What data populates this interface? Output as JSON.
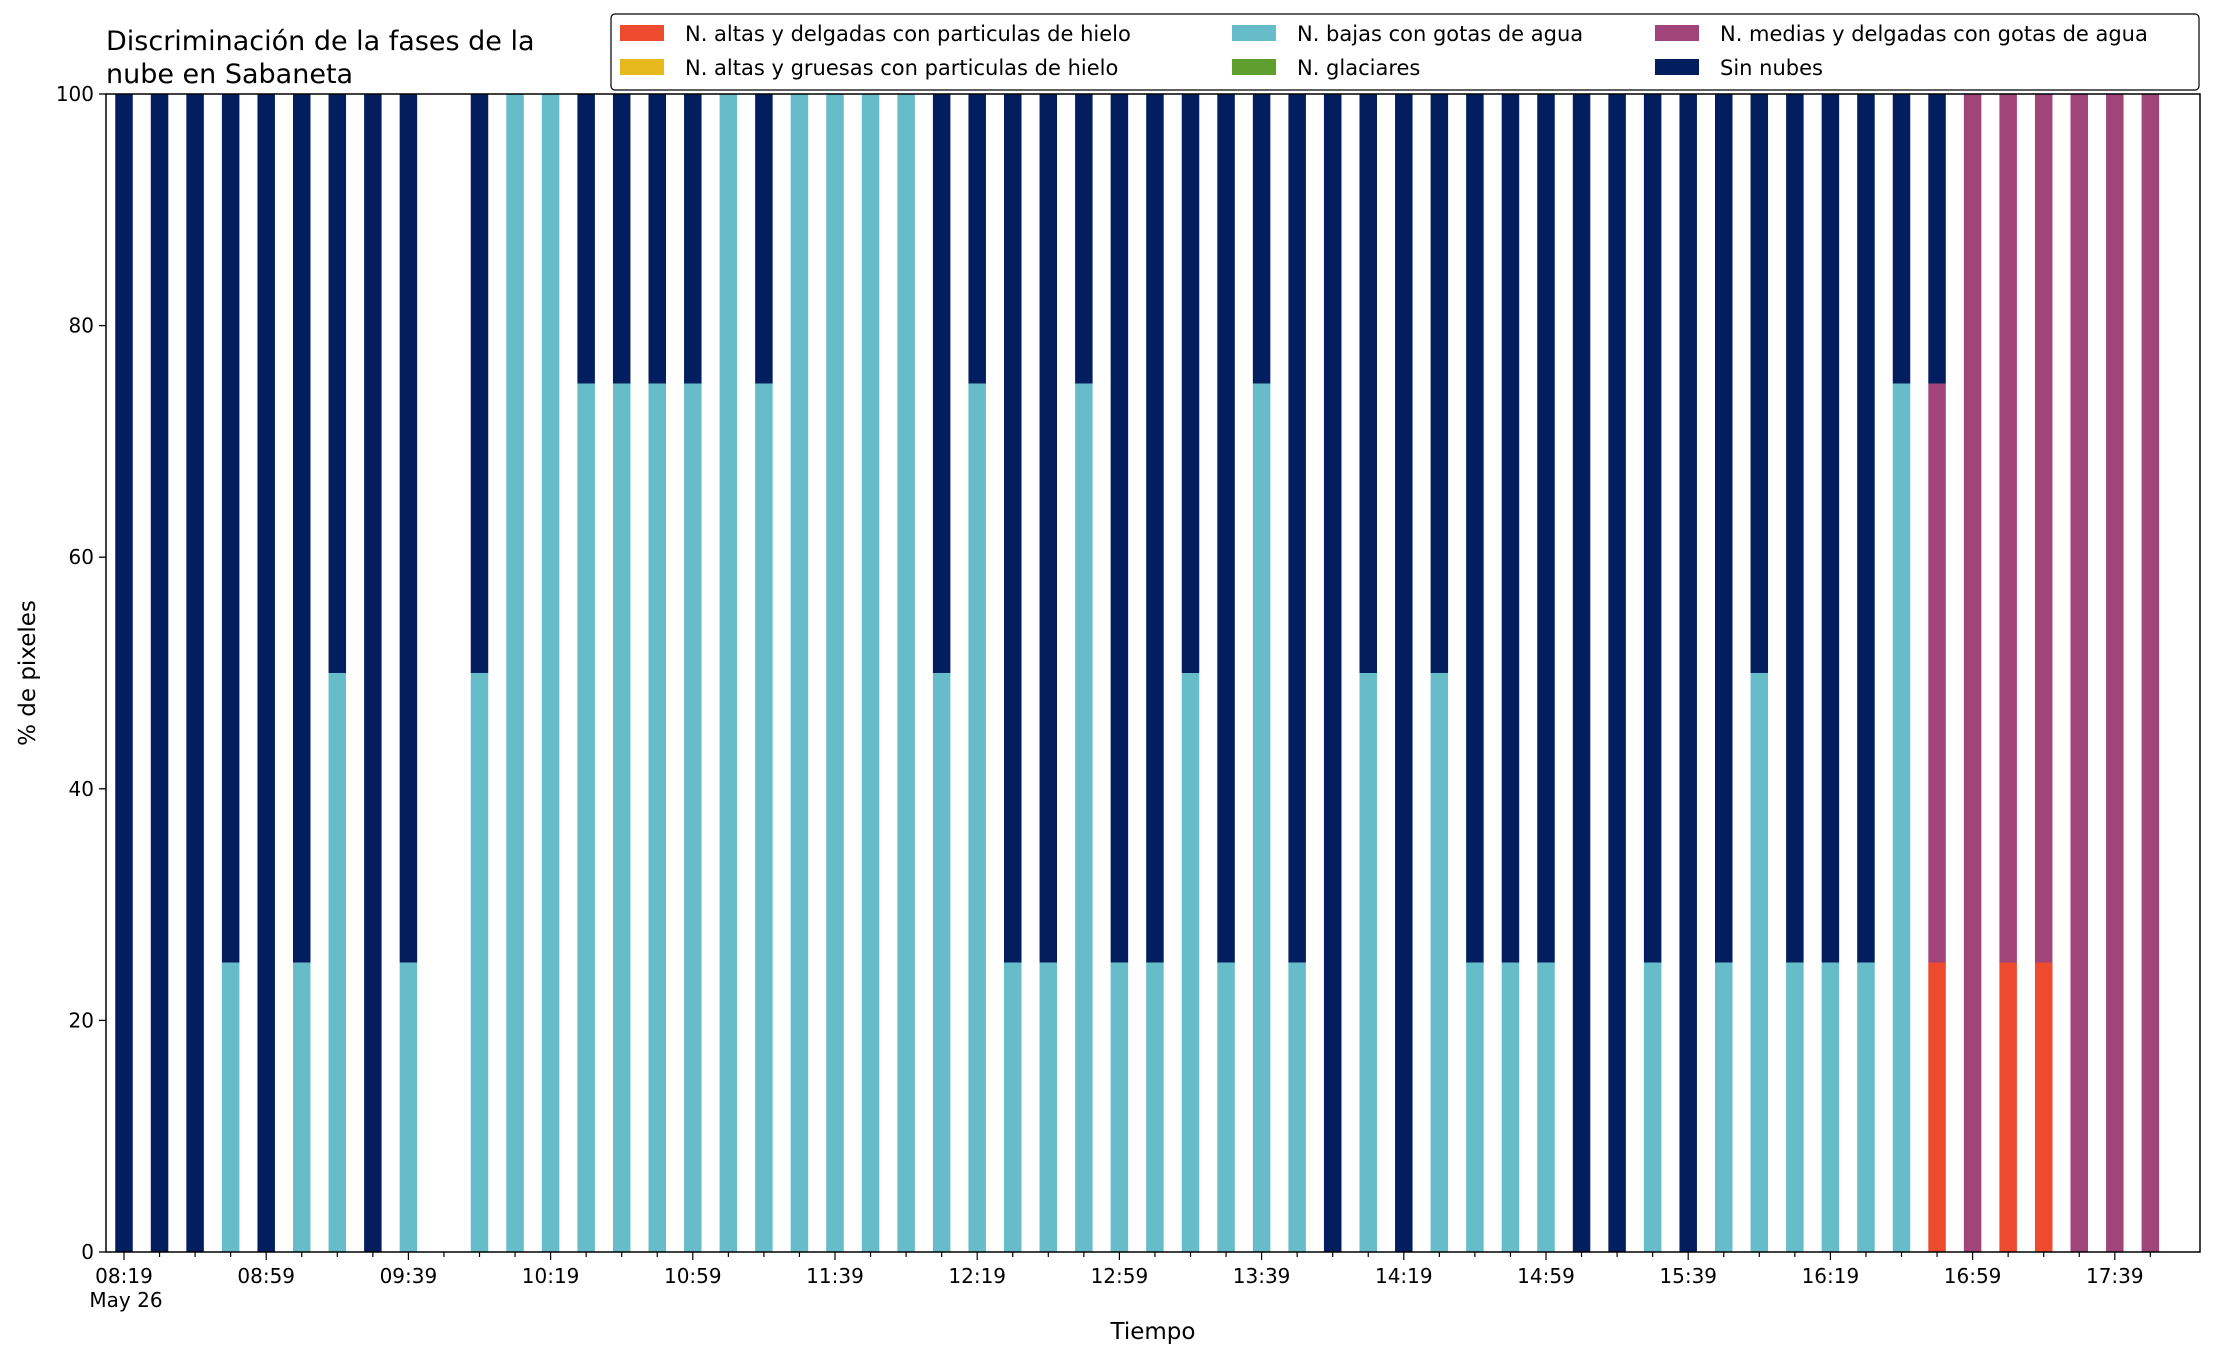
{
  "chart_data": {
    "type": "bar",
    "stacked": true,
    "title": "Discriminación de la fases de la\nnube en Sabaneta",
    "xlabel": "Tiempo",
    "ylabel": "% de pixeles",
    "ylim": [
      0,
      100
    ],
    "yticks": [
      0,
      20,
      40,
      60,
      80,
      100
    ],
    "grid": false,
    "legend_position": "top-right",
    "x_start": "08:19",
    "x_step_minutes": 10,
    "x_date_label": "May 26",
    "xtick_labels": [
      "08:19",
      "08:59",
      "09:39",
      "10:19",
      "10:59",
      "11:39",
      "12:19",
      "12:59",
      "13:39",
      "14:19",
      "14:59",
      "15:39",
      "16:19",
      "16:59",
      "17:39"
    ],
    "categories": [
      "08:19",
      "08:29",
      "08:39",
      "08:49",
      "08:59",
      "09:09",
      "09:19",
      "09:29",
      "09:39",
      "09:49",
      "09:59",
      "10:09",
      "10:19",
      "10:29",
      "10:39",
      "10:49",
      "10:59",
      "11:09",
      "11:19",
      "11:29",
      "11:39",
      "11:49",
      "11:59",
      "12:09",
      "12:19",
      "12:29",
      "12:39",
      "12:49",
      "12:59",
      "13:09",
      "13:19",
      "13:29",
      "13:39",
      "13:49",
      "13:59",
      "14:09",
      "14:19",
      "14:29",
      "14:39",
      "14:49",
      "14:59",
      "15:09",
      "15:19",
      "15:29",
      "15:39",
      "15:49",
      "15:59",
      "16:09",
      "16:19",
      "16:29",
      "16:39",
      "16:49",
      "16:59",
      "17:09",
      "17:19",
      "17:29",
      "17:39",
      "17:49"
    ],
    "series": [
      {
        "name": "N. altas y delgadas con particulas de hielo",
        "color": "#ee4a2d",
        "values": [
          0,
          0,
          0,
          0,
          0,
          0,
          0,
          0,
          0,
          0,
          0,
          0,
          0,
          0,
          0,
          0,
          0,
          0,
          0,
          0,
          0,
          0,
          0,
          0,
          0,
          0,
          0,
          0,
          0,
          0,
          0,
          0,
          0,
          0,
          0,
          0,
          0,
          0,
          0,
          0,
          0,
          0,
          0,
          0,
          0,
          0,
          0,
          0,
          0,
          0,
          0,
          25,
          0,
          25,
          25,
          0,
          0,
          0
        ]
      },
      {
        "name": "N. altas y gruesas con particulas de hielo",
        "color": "#e6b81c",
        "values": [
          0,
          0,
          0,
          0,
          0,
          0,
          0,
          0,
          0,
          0,
          0,
          0,
          0,
          0,
          0,
          0,
          0,
          0,
          0,
          0,
          0,
          0,
          0,
          0,
          0,
          0,
          0,
          0,
          0,
          0,
          0,
          0,
          0,
          0,
          0,
          0,
          0,
          0,
          0,
          0,
          0,
          0,
          0,
          0,
          0,
          0,
          0,
          0,
          0,
          0,
          0,
          0,
          0,
          0,
          0,
          0,
          0,
          0
        ]
      },
      {
        "name": "N. bajas con gotas de agua",
        "color": "#66bdc9",
        "values": [
          0,
          0,
          0,
          25,
          0,
          25,
          50,
          0,
          25,
          0,
          50,
          100,
          100,
          75,
          75,
          75,
          75,
          100,
          75,
          100,
          100,
          100,
          100,
          50,
          75,
          25,
          25,
          75,
          25,
          25,
          50,
          25,
          75,
          25,
          0,
          50,
          0,
          50,
          25,
          25,
          25,
          0,
          0,
          25,
          0,
          25,
          50,
          25,
          25,
          25,
          75,
          0,
          0,
          0,
          0,
          0,
          0,
          0
        ]
      },
      {
        "name": "N. glaciares",
        "color": "#5e9e2e",
        "values": [
          0,
          0,
          0,
          0,
          0,
          0,
          0,
          0,
          0,
          0,
          0,
          0,
          0,
          0,
          0,
          0,
          0,
          0,
          0,
          0,
          0,
          0,
          0,
          0,
          0,
          0,
          0,
          0,
          0,
          0,
          0,
          0,
          0,
          0,
          0,
          0,
          0,
          0,
          0,
          0,
          0,
          0,
          0,
          0,
          0,
          0,
          0,
          0,
          0,
          0,
          0,
          0,
          0,
          0,
          0,
          0,
          0,
          0
        ]
      },
      {
        "name": "N. medias y delgadas con gotas de agua",
        "color": "#a0447a",
        "values": [
          0,
          0,
          0,
          0,
          0,
          0,
          0,
          0,
          0,
          0,
          0,
          0,
          0,
          0,
          0,
          0,
          0,
          0,
          0,
          0,
          0,
          0,
          0,
          0,
          0,
          0,
          0,
          0,
          0,
          0,
          0,
          0,
          0,
          0,
          0,
          0,
          0,
          0,
          0,
          0,
          0,
          0,
          0,
          0,
          0,
          0,
          0,
          0,
          0,
          0,
          0,
          50,
          100,
          75,
          75,
          100,
          100,
          100
        ]
      },
      {
        "name": "Sin nubes",
        "color": "#021e5e",
        "values": [
          100,
          100,
          100,
          75,
          100,
          75,
          50,
          100,
          75,
          0,
          50,
          0,
          0,
          25,
          25,
          25,
          25,
          0,
          25,
          0,
          0,
          0,
          0,
          50,
          25,
          75,
          75,
          25,
          75,
          75,
          50,
          75,
          25,
          75,
          100,
          50,
          100,
          50,
          75,
          75,
          75,
          100,
          100,
          75,
          100,
          75,
          50,
          75,
          75,
          75,
          25,
          25,
          0,
          0,
          0,
          0,
          0,
          0
        ]
      }
    ]
  }
}
